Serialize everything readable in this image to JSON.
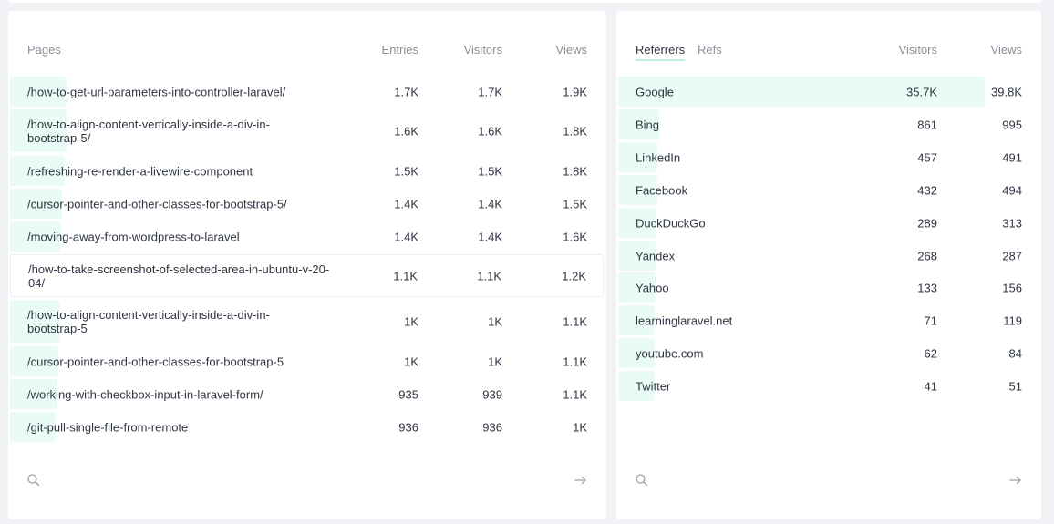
{
  "pages": {
    "headers": {
      "name": "Pages",
      "entries": "Entries",
      "visitors": "Visitors",
      "views": "Views"
    },
    "rows": [
      {
        "label": "/how-to-get-url-parameters-into-controller-laravel/",
        "entries": "1.7K",
        "visitors": "1.7K",
        "views": "1.9K"
      },
      {
        "label": "/how-to-align-content-vertically-inside-a-div-in-bootstrap-5/",
        "entries": "1.6K",
        "visitors": "1.6K",
        "views": "1.8K"
      },
      {
        "label": "/refreshing-re-render-a-livewire-component",
        "entries": "1.5K",
        "visitors": "1.5K",
        "views": "1.8K"
      },
      {
        "label": "/cursor-pointer-and-other-classes-for-bootstrap-5/",
        "entries": "1.4K",
        "visitors": "1.4K",
        "views": "1.5K"
      },
      {
        "label": "/moving-away-from-wordpress-to-laravel",
        "entries": "1.4K",
        "visitors": "1.4K",
        "views": "1.6K"
      },
      {
        "label": "/how-to-take-screenshot-of-selected-area-in-ubuntu-v-20-04/",
        "entries": "1.1K",
        "visitors": "1.1K",
        "views": "1.2K"
      },
      {
        "label": "/how-to-align-content-vertically-inside-a-div-in-bootstrap-5",
        "entries": "1K",
        "visitors": "1K",
        "views": "1.1K"
      },
      {
        "label": "/cursor-pointer-and-other-classes-for-bootstrap-5",
        "entries": "1K",
        "visitors": "1K",
        "views": "1.1K"
      },
      {
        "label": "/working-with-checkbox-input-in-laravel-form/",
        "entries": "935",
        "visitors": "939",
        "views": "1.1K"
      },
      {
        "label": "/git-pull-single-file-from-remote",
        "entries": "936",
        "visitors": "936",
        "views": "1K"
      }
    ],
    "search_icon": "search-icon",
    "arrow_icon": "arrow-right-icon"
  },
  "referrers": {
    "tabs": [
      "Referrers",
      "Refs"
    ],
    "headers": {
      "visitors": "Visitors",
      "views": "Views"
    },
    "rows": [
      {
        "label": "Google",
        "visitors": "35.7K",
        "views": "39.8K"
      },
      {
        "label": "Bing",
        "visitors": "861",
        "views": "995"
      },
      {
        "label": "LinkedIn",
        "visitors": "457",
        "views": "491"
      },
      {
        "label": "Facebook",
        "visitors": "432",
        "views": "494"
      },
      {
        "label": "DuckDuckGo",
        "visitors": "289",
        "views": "313"
      },
      {
        "label": "Yandex",
        "visitors": "268",
        "views": "287"
      },
      {
        "label": "Yahoo",
        "visitors": "133",
        "views": "156"
      },
      {
        "label": "learninglaravel.net",
        "visitors": "71",
        "views": "119"
      },
      {
        "label": "youtube.com",
        "visitors": "62",
        "views": "84"
      },
      {
        "label": "Twitter",
        "visitors": "41",
        "views": "51"
      }
    ],
    "search_icon": "search-icon",
    "arrow_icon": "arrow-right-icon"
  },
  "colors": {
    "bar": "#e9fbf4",
    "tab_underline": "#bff0dd",
    "background": "#f1f2f6"
  }
}
